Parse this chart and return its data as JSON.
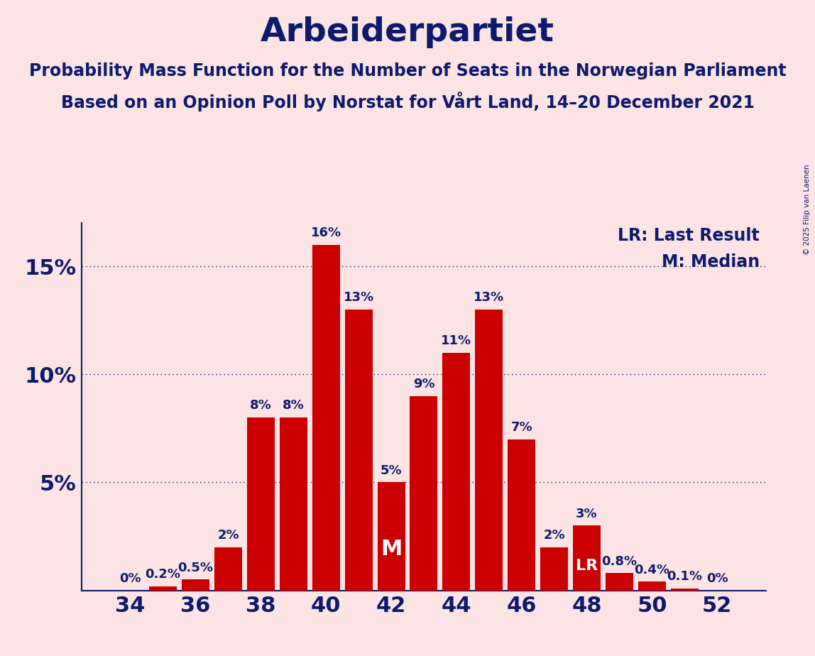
{
  "title": "Arbeiderpartiet",
  "subtitle1": "Probability Mass Function for the Number of Seats in the Norwegian Parliament",
  "subtitle2": "Based on an Opinion Poll by Norstat for Vårt Land, 14–20 December 2021",
  "copyright": "© 2025 Filip van Laenen",
  "seats": [
    34,
    35,
    36,
    37,
    38,
    39,
    40,
    41,
    42,
    43,
    44,
    45,
    46,
    47,
    48,
    49,
    50,
    51,
    52
  ],
  "probabilities": [
    0.0,
    0.2,
    0.5,
    2.0,
    8.0,
    8.0,
    16.0,
    13.0,
    5.0,
    9.0,
    11.0,
    13.0,
    7.0,
    2.0,
    3.0,
    0.8,
    0.4,
    0.1,
    0.0
  ],
  "bar_color": "#cc0000",
  "background_color": "#fce4e4",
  "text_color": "#0d1b6e",
  "grid_color": "#0d1b6e",
  "ylim": [
    0,
    17
  ],
  "median_seat": 42,
  "last_result_seat": 48,
  "legend_lr": "LR: Last Result",
  "legend_m": "M: Median",
  "title_fontsize": 34,
  "subtitle_fontsize": 17,
  "axis_fontsize": 22,
  "bar_label_fontsize": 13,
  "legend_fontsize": 17,
  "xlabel_fontsize": 22
}
